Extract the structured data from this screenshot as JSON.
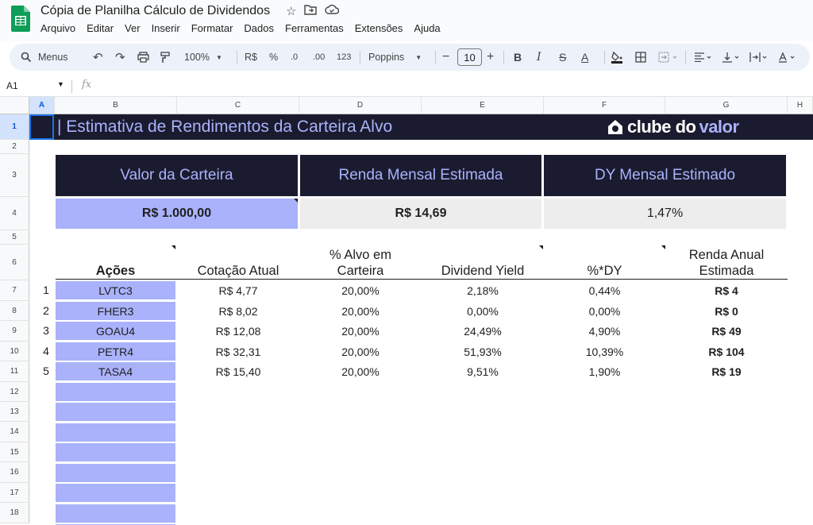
{
  "app": {
    "title": "Cópia de Planilha Cálculo de Dividendos",
    "menus": [
      "Arquivo",
      "Editar",
      "Ver",
      "Inserir",
      "Formatar",
      "Dados",
      "Ferramentas",
      "Extensões",
      "Ajuda"
    ]
  },
  "toolbar": {
    "search_label": "Menus",
    "zoom": "100%",
    "currency": "R$",
    "percent": "%",
    "dec_less": ".0",
    "dec_more": ".00",
    "number_format": "123",
    "font": "Poppins",
    "font_size": "10"
  },
  "formula_bar": {
    "cell_ref": "A1",
    "fx": "fx"
  },
  "columns": [
    "A",
    "B",
    "C",
    "D",
    "E",
    "F",
    "G",
    "H"
  ],
  "rows": [
    "1",
    "2",
    "3",
    "4",
    "5",
    "6",
    "7",
    "8",
    "9",
    "10",
    "11",
    "12",
    "13",
    "14",
    "15",
    "16",
    "17",
    "18"
  ],
  "sheet": {
    "banner_title": "| Estimativa de Rendimentos da Carteira Alvo",
    "brand_part1": "clube do",
    "brand_part2": "valor",
    "kpis": [
      {
        "label": "Valor da Carteira",
        "value": "R$ 1.000,00"
      },
      {
        "label": "Renda Mensal Estimada",
        "value": "R$ 14,69"
      },
      {
        "label": "DY Mensal Estimado",
        "value": "1,47%"
      }
    ],
    "table_headers": {
      "acoes": "Ações",
      "cotacao": "Cotação Atual",
      "alvo_l1": "% Alvo em",
      "alvo_l2": "Carteira",
      "dy": "Dividend Yield",
      "pdy": "%*DY",
      "renda_l1": "Renda Anual",
      "renda_l2": "Estimada"
    },
    "rows": [
      {
        "n": "1",
        "ticker": "LVTC3",
        "cotacao": "R$ 4,77",
        "alvo": "20,00%",
        "dy": "2,18%",
        "pdy": "0,44%",
        "renda": "R$ 4"
      },
      {
        "n": "2",
        "ticker": "FHER3",
        "cotacao": "R$ 8,02",
        "alvo": "20,00%",
        "dy": "0,00%",
        "pdy": "0,00%",
        "renda": "R$ 0"
      },
      {
        "n": "3",
        "ticker": "GOAU4",
        "cotacao": "R$ 12,08",
        "alvo": "20,00%",
        "dy": "24,49%",
        "pdy": "4,90%",
        "renda": "R$ 49"
      },
      {
        "n": "4",
        "ticker": "PETR4",
        "cotacao": "R$ 32,31",
        "alvo": "20,00%",
        "dy": "51,93%",
        "pdy": "10,39%",
        "renda": "R$ 104"
      },
      {
        "n": "5",
        "ticker": "TASA4",
        "cotacao": "R$ 15,40",
        "alvo": "20,00%",
        "dy": "9,51%",
        "pdy": "1,90%",
        "renda": "R$ 19"
      }
    ]
  },
  "colors": {
    "navy": "#1b1b2f",
    "lavender": "#a9b2fb",
    "grey": "#ededed",
    "accent": "#1a73e8"
  }
}
